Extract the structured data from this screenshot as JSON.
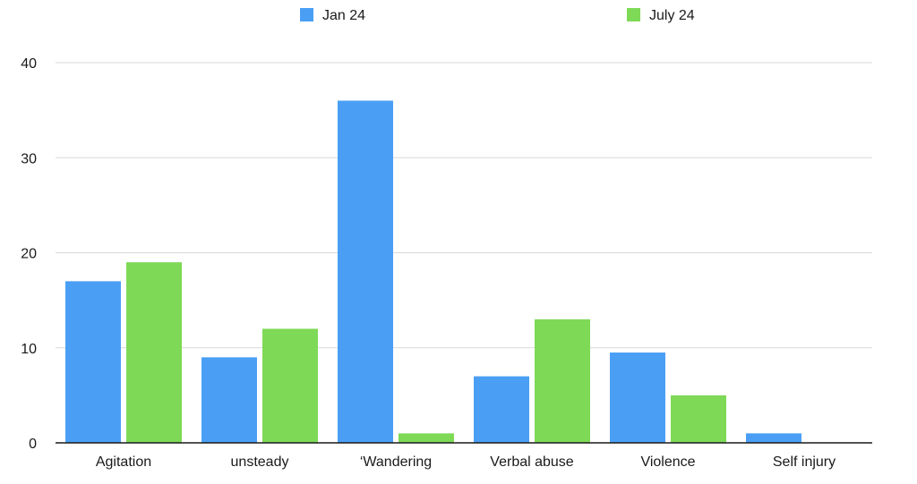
{
  "chart_data": {
    "type": "bar",
    "categories": [
      "Agitation",
      "unsteady",
      "‘Wandering",
      "Verbal abuse",
      "Violence",
      "Self injury"
    ],
    "series": [
      {
        "name": "Jan 24",
        "values": [
          17,
          9,
          36,
          7,
          9.5,
          1
        ],
        "color": "#4a9ff5"
      },
      {
        "name": "July 24",
        "values": [
          19,
          12,
          1,
          13,
          5,
          0
        ],
        "color": "#7ed957"
      }
    ],
    "title": "",
    "xlabel": "",
    "ylabel": "",
    "ylim": [
      0,
      40
    ],
    "yticks": [
      0,
      10,
      20,
      30,
      40
    ],
    "grid": true,
    "legend_position": "top"
  }
}
